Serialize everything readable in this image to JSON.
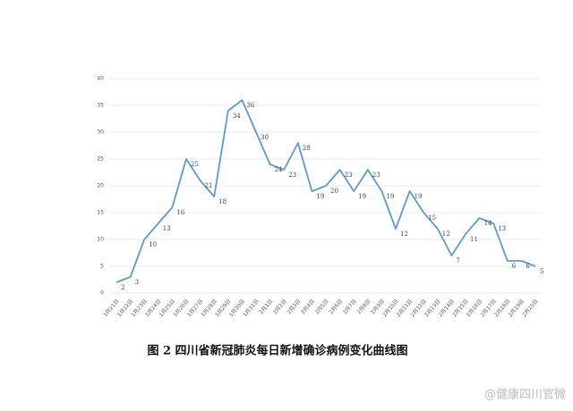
{
  "chart_data": {
    "type": "line",
    "title": "图 2   四川省新冠肺炎每日新增确诊病例变化曲线图",
    "watermark": "@健康四川官微",
    "categories": [
      "1月21日",
      "1月22日",
      "1月23日",
      "1月24日",
      "1月25日",
      "1月26日",
      "1月27日",
      "1月28日",
      "1月29日",
      "1月30日",
      "1月31日",
      "2月1日",
      "2月2日",
      "2月3日",
      "2月4日",
      "2月5日",
      "2月6日",
      "2月7日",
      "2月8日",
      "2月9日",
      "2月10日",
      "2月11日",
      "2月12日",
      "2月13日",
      "2月14日",
      "2月15日",
      "2月16日",
      "2月17日",
      "2月18日",
      "2月19日",
      "2月20日"
    ],
    "series": [
      {
        "name": "新增确诊",
        "color": "#5b9bd5",
        "values": [
          2,
          3,
          10,
          13,
          16,
          25,
          21,
          18,
          34,
          36,
          30,
          24,
          23,
          28,
          19,
          20,
          23,
          19,
          23,
          19,
          12,
          19,
          15,
          12,
          7,
          11,
          14,
          13,
          6,
          6,
          5
        ]
      }
    ],
    "ylim": [
      0,
      40
    ],
    "yticks": [
      0,
      5,
      10,
      15,
      20,
      25,
      30,
      35,
      40
    ],
    "grid": true,
    "data_labels": true
  }
}
